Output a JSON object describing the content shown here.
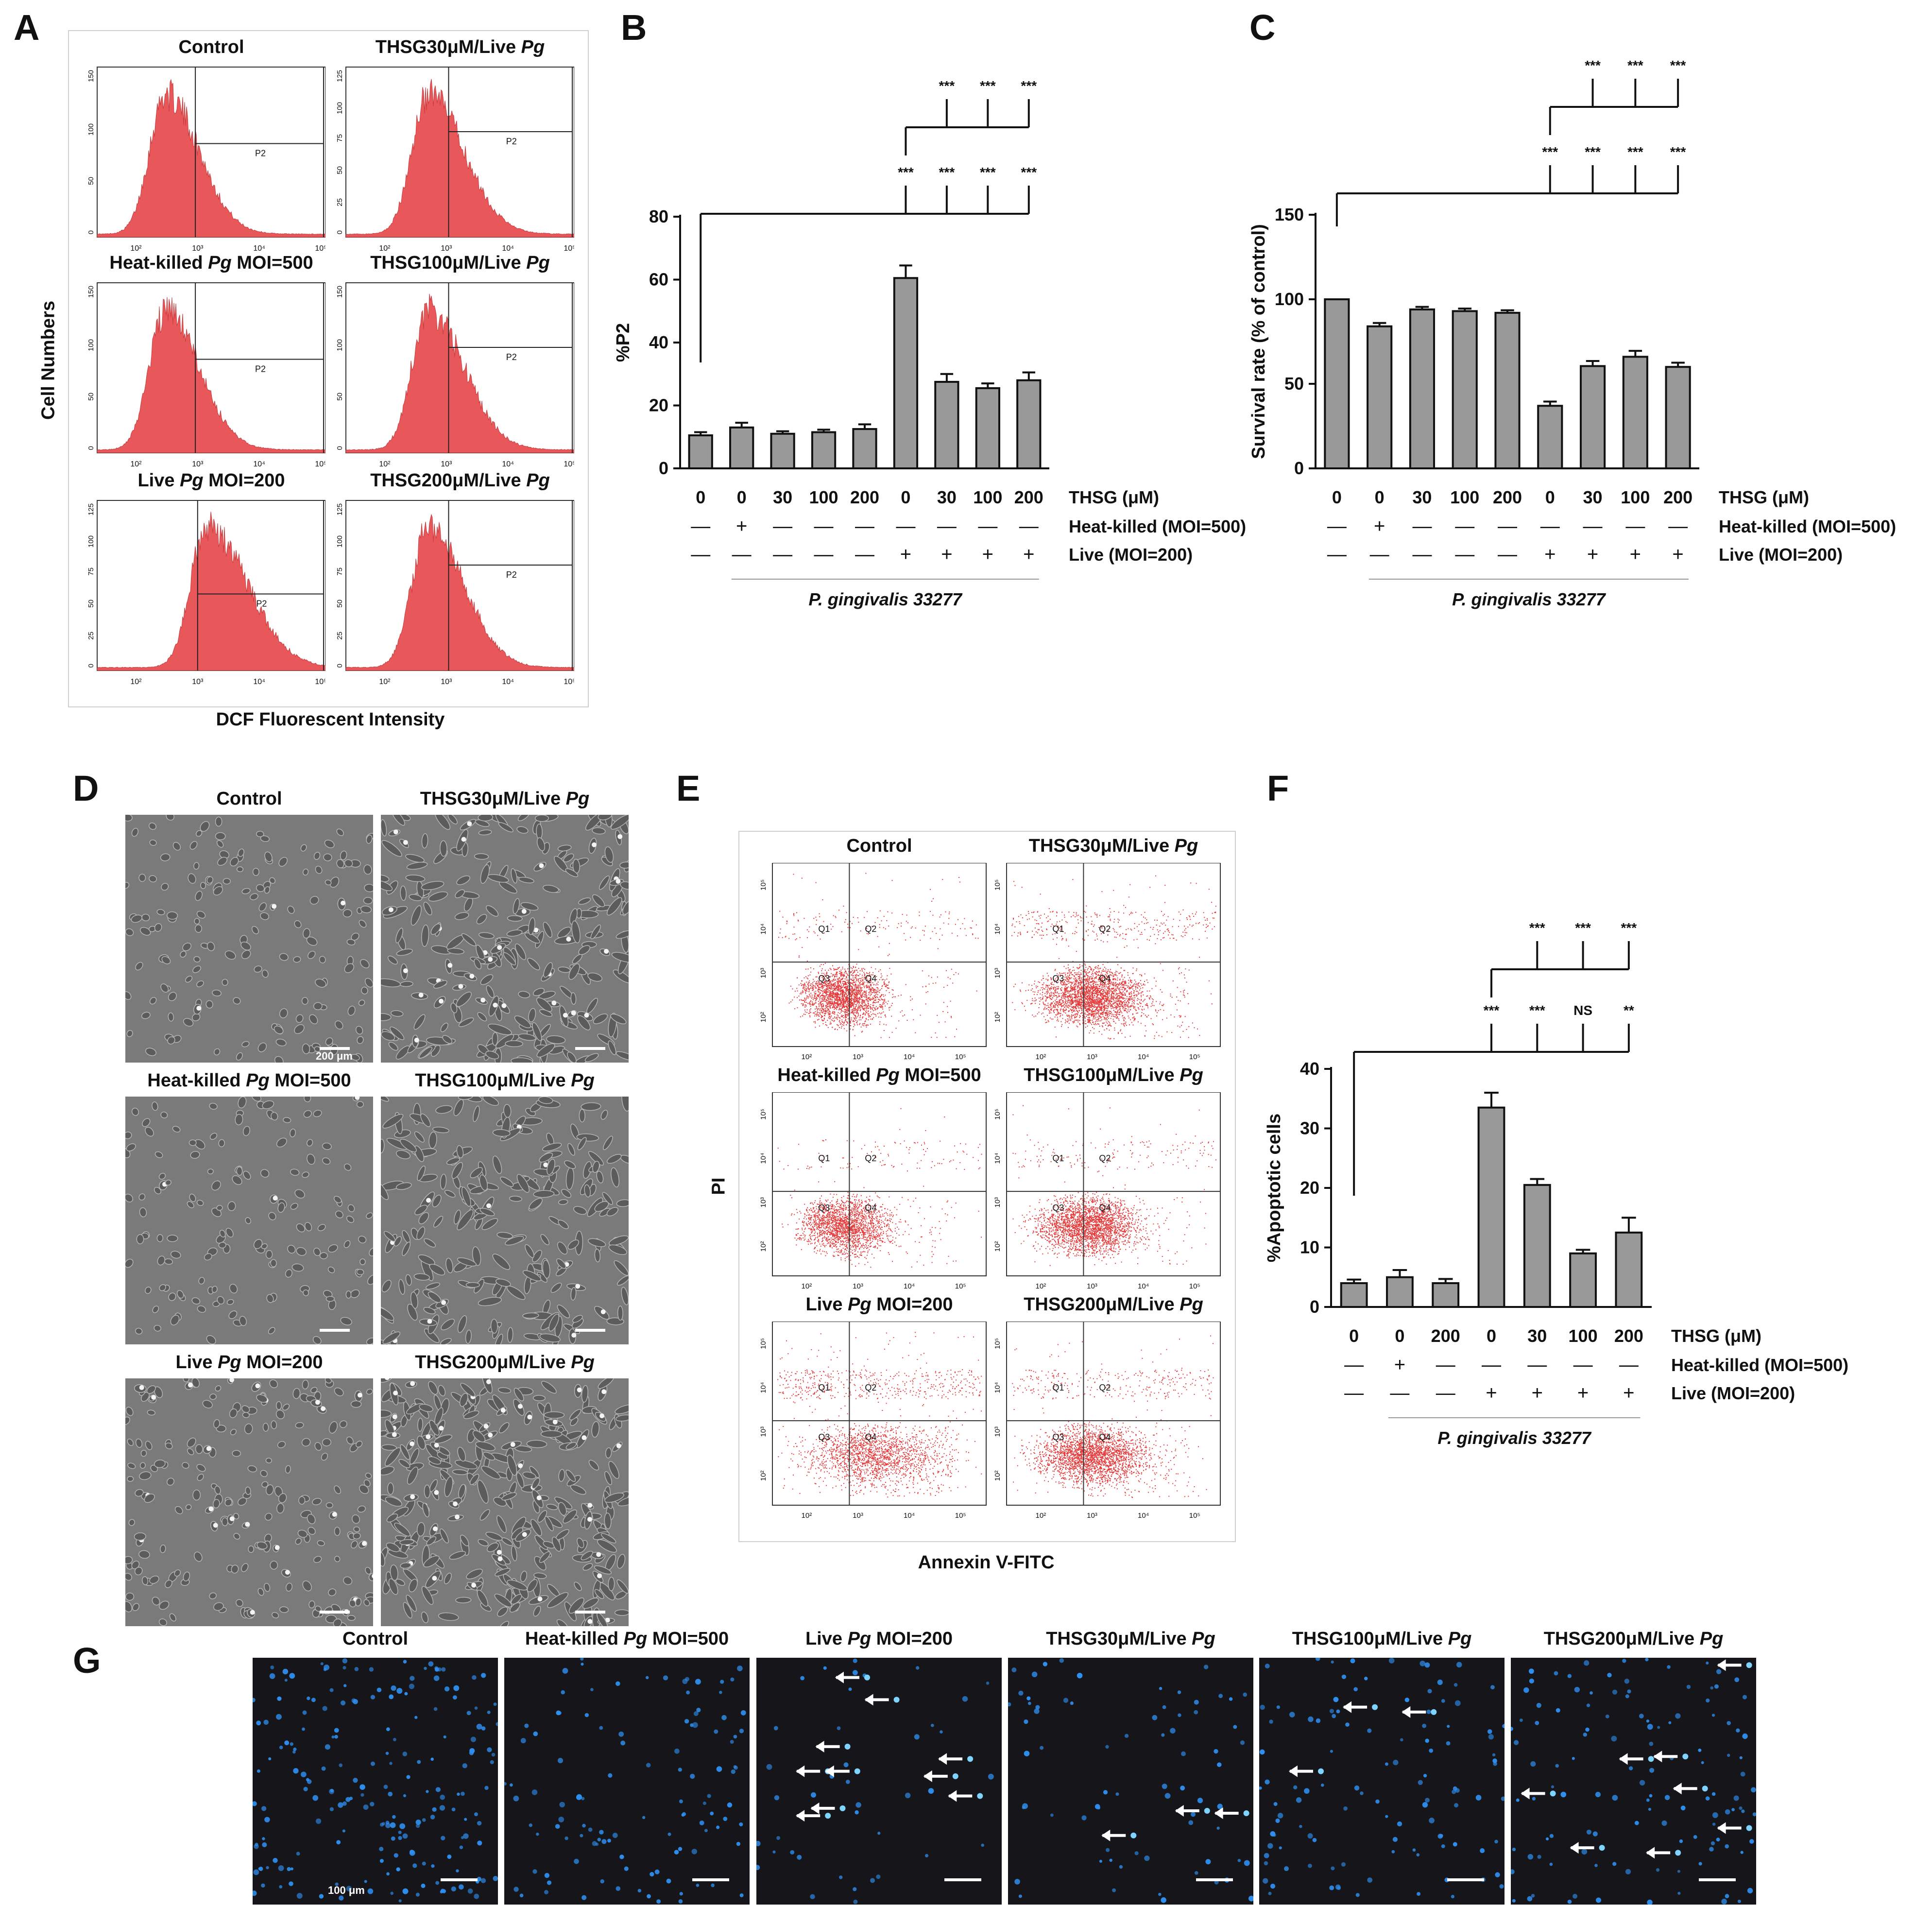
{
  "panels": {
    "A": "A",
    "B": "B",
    "C": "C",
    "D": "D",
    "E": "E",
    "F": "F",
    "G": "G"
  },
  "panel_A": {
    "y_title": "Cell Numbers",
    "x_title": "DCF Fluorescent Intensity",
    "gate_label": "P2",
    "x_ticks": [
      "10²",
      "10³",
      "10⁴",
      "10⁵"
    ],
    "histograms": [
      {
        "title": "Control",
        "y_ticks": [
          "150",
          "100",
          "50",
          "0"
        ],
        "peak": 0.3
      },
      {
        "title": "THSG30μM/Live Pg",
        "y_ticks": [
          "125",
          "100",
          "75",
          "50",
          "25",
          "0"
        ],
        "peak": 0.36
      },
      {
        "title": "Heat-killed Pg MOI=500",
        "y_ticks": [
          "150",
          "100",
          "50",
          "0"
        ],
        "peak": 0.3
      },
      {
        "title": "THSG100μM/Live Pg",
        "y_ticks": [
          "150",
          "100",
          "50",
          "0"
        ],
        "peak": 0.36
      },
      {
        "title": "Live Pg MOI=200",
        "y_ticks": [
          "125",
          "100",
          "75",
          "50",
          "25",
          "0"
        ],
        "peak": 0.48
      },
      {
        "title": "THSG200μM/Live Pg",
        "y_ticks": [
          "125",
          "100",
          "75",
          "50",
          "25",
          "0"
        ],
        "peak": 0.36
      }
    ]
  },
  "chart_data": [
    {
      "panel": "B",
      "type": "bar",
      "ylabel": "%P2",
      "ylim": [
        0,
        80
      ],
      "yticks": [
        0,
        20,
        40,
        60,
        80
      ],
      "categories": [
        "0",
        "0",
        "30",
        "100",
        "200",
        "0",
        "30",
        "100",
        "200"
      ],
      "values": [
        10.5,
        13,
        11,
        11.5,
        12.5,
        60.5,
        27.5,
        25.5,
        28
      ],
      "errors": [
        1,
        1.5,
        0.8,
        0.8,
        1.5,
        4,
        2.5,
        1.5,
        2.5
      ],
      "row_labels": [
        "THSG (μM)",
        "Heat-killed (MOI=500)",
        "Live (MOI=200)"
      ],
      "heat_killed": [
        "—",
        "+",
        "—",
        "—",
        "—",
        "—",
        "—",
        "—",
        "—"
      ],
      "live": [
        "—",
        "—",
        "—",
        "—",
        "—",
        "+",
        "+",
        "+",
        "+"
      ],
      "strain": "P. gingivalis 33277",
      "sig_vs_control": [
        "***",
        "***",
        "***",
        "***"
      ],
      "sig_vs_live": [
        "***",
        "***",
        "***"
      ]
    },
    {
      "panel": "C",
      "type": "bar",
      "ylabel": "Survival rate (% of control)",
      "ylim": [
        0,
        150
      ],
      "yticks": [
        0,
        50,
        100,
        150
      ],
      "categories": [
        "0",
        "0",
        "30",
        "100",
        "200",
        "0",
        "30",
        "100",
        "200"
      ],
      "values": [
        100,
        84,
        94,
        93,
        92,
        37,
        60.5,
        66,
        60
      ],
      "errors": [
        0,
        2,
        1.5,
        1.5,
        1.5,
        2.5,
        3,
        3.5,
        2.5
      ],
      "row_labels": [
        "THSG (μM)",
        "Heat-killed (MOI=500)",
        "Live (MOI=200)"
      ],
      "heat_killed": [
        "—",
        "+",
        "—",
        "—",
        "—",
        "—",
        "—",
        "—",
        "—"
      ],
      "live": [
        "—",
        "—",
        "—",
        "—",
        "—",
        "+",
        "+",
        "+",
        "+"
      ],
      "strain": "P. gingivalis 33277",
      "sig_vs_control": [
        "***",
        "***",
        "***",
        "***"
      ],
      "sig_vs_live": [
        "***",
        "***",
        "***"
      ]
    },
    {
      "panel": "F",
      "type": "bar",
      "ylabel": "%Apoptotic cells",
      "ylim": [
        0,
        40
      ],
      "yticks": [
        0,
        10,
        20,
        30,
        40
      ],
      "categories": [
        "0",
        "0",
        "200",
        "0",
        "30",
        "100",
        "200"
      ],
      "values": [
        4,
        5,
        4,
        33.5,
        20.5,
        9,
        12.5
      ],
      "errors": [
        0.6,
        1.2,
        0.7,
        2.5,
        1,
        0.6,
        2.5
      ],
      "row_labels": [
        "THSG (μM)",
        "Heat-killed (MOI=500)",
        "Live (MOI=200)"
      ],
      "heat_killed": [
        "—",
        "+",
        "—",
        "—",
        "—",
        "—",
        "—"
      ],
      "live": [
        "—",
        "—",
        "—",
        "+",
        "+",
        "+",
        "+"
      ],
      "strain": "P. gingivalis 33277",
      "sig_vs_control": [
        "***",
        "***",
        "NS",
        "**"
      ],
      "sig_vs_live": [
        "***",
        "***",
        "***"
      ]
    }
  ],
  "panel_D": {
    "titles": [
      "Control",
      "THSG30μM/Live Pg",
      "Heat-killed Pg MOI=500",
      "THSG100μM/Live Pg",
      "Live Pg MOI=200",
      "THSG200μM/Live Pg"
    ],
    "scale_label": "200 μm"
  },
  "panel_E": {
    "y_title": "PI",
    "x_title": "Annexin V-FITC",
    "quadrants": [
      "Q1",
      "Q2",
      "Q3",
      "Q4"
    ],
    "ticks": [
      "10²",
      "10³",
      "10⁴",
      "10⁵"
    ],
    "titles": [
      "Control",
      "THSG30μM/Live Pg",
      "Heat-killed Pg MOI=500",
      "THSG100μM/Live Pg",
      "Live Pg MOI=200",
      "THSG200μM/Live Pg"
    ]
  },
  "panel_G": {
    "titles": [
      "Control",
      "Heat-killed Pg MOI=500",
      "Live Pg MOI=200",
      "THSG30μM/Live Pg",
      "THSG100μM/Live Pg",
      "THSG200μM/Live Pg"
    ],
    "scale_label": "100 μm"
  },
  "colors": {
    "bar": "#999999",
    "hist": "#e8585a",
    "dot": "#e53a3a",
    "nuclei": "#2f8ff0",
    "micro_bg": "#7a7a7a",
    "fluor_bg": "#15151a"
  }
}
